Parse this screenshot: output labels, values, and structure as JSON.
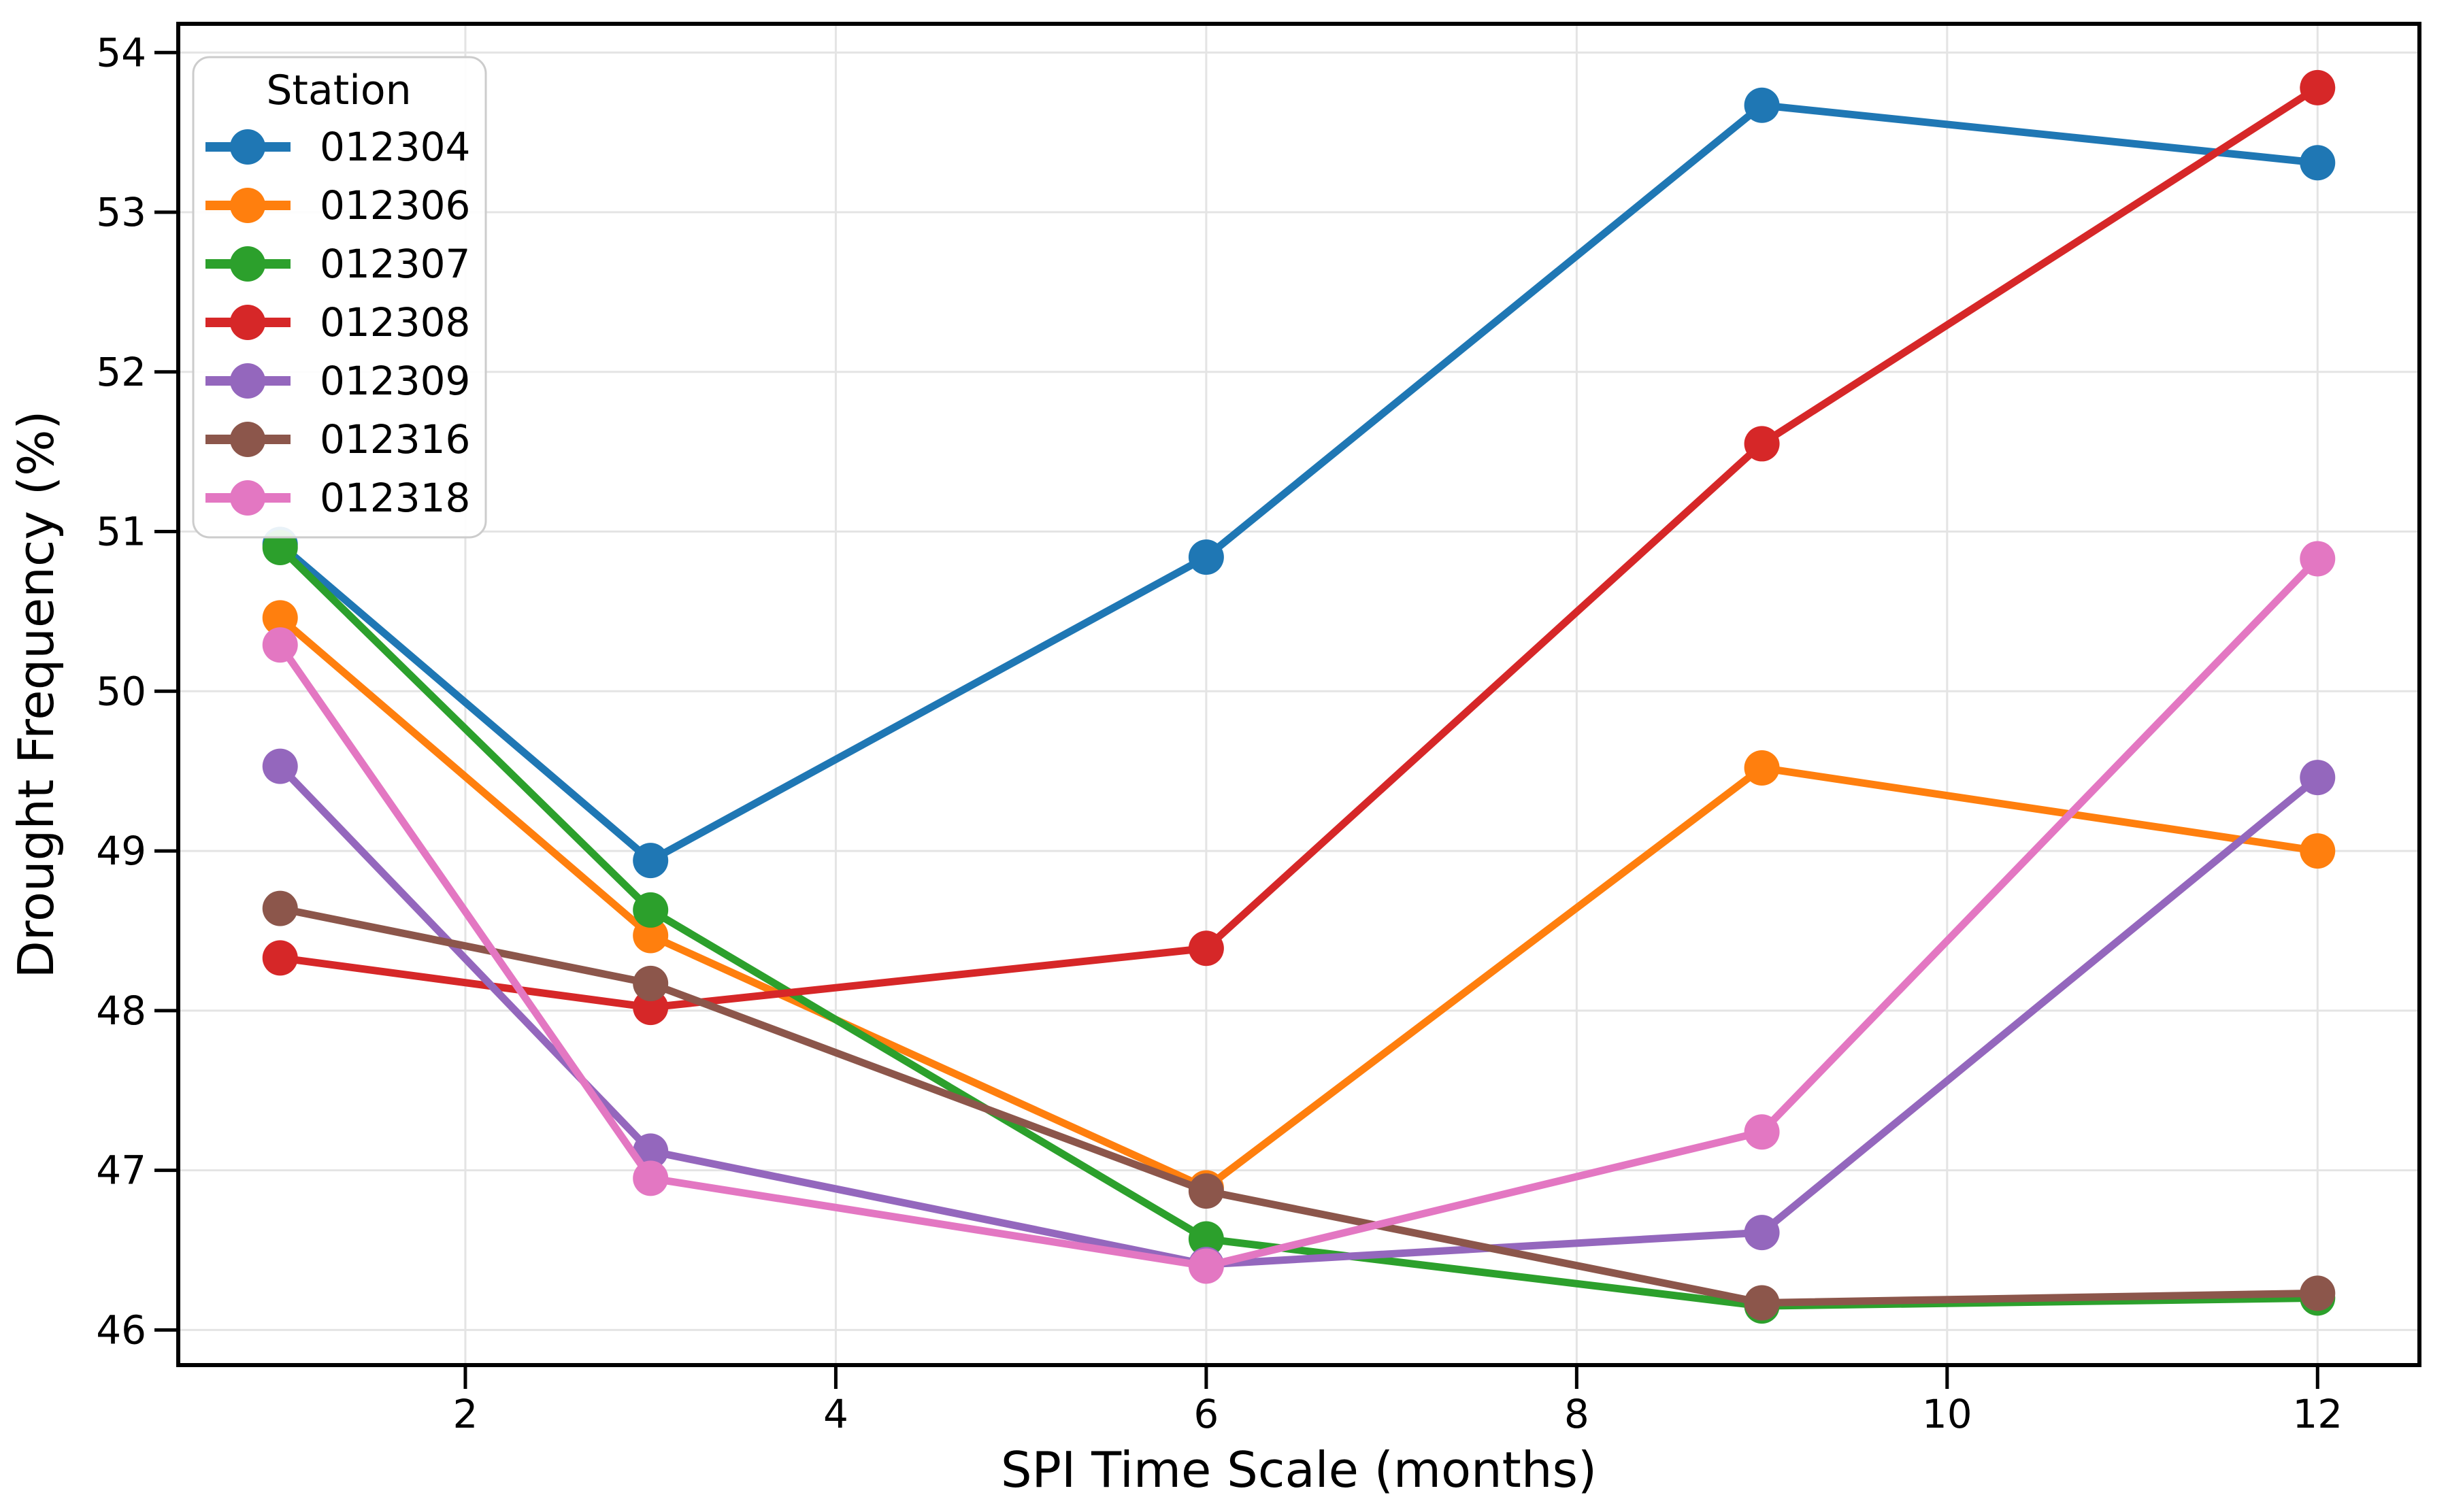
{
  "chart_data": {
    "type": "line",
    "title": "",
    "xlabel": "SPI Time Scale (months)",
    "ylabel": "Drought Frequency (%)",
    "x": [
      1,
      3,
      6,
      9,
      12
    ],
    "xlim": [
      0.45,
      12.55
    ],
    "ylim": [
      45.78,
      54.18
    ],
    "xticks": [
      2,
      4,
      6,
      8,
      10,
      12
    ],
    "yticks": [
      46,
      47,
      48,
      49,
      50,
      51,
      52,
      53,
      54
    ],
    "grid": true,
    "legend": {
      "title": "Station",
      "position": "upper-left"
    },
    "series": [
      {
        "name": "012304",
        "color": "#1f77b4",
        "values": [
          50.92,
          48.94,
          50.84,
          53.67,
          53.31
        ]
      },
      {
        "name": "012306",
        "color": "#ff7f0e",
        "values": [
          50.46,
          48.47,
          46.89,
          49.52,
          49.0
        ]
      },
      {
        "name": "012307",
        "color": "#2ca02c",
        "values": [
          50.9,
          48.63,
          46.57,
          46.15,
          46.2
        ]
      },
      {
        "name": "012308",
        "color": "#d62728",
        "values": [
          48.33,
          48.02,
          48.39,
          51.55,
          53.78
        ]
      },
      {
        "name": "012309",
        "color": "#9467bd",
        "values": [
          49.53,
          47.12,
          46.41,
          46.61,
          49.46
        ]
      },
      {
        "name": "012316",
        "color": "#8c564b",
        "values": [
          48.64,
          48.17,
          46.87,
          46.17,
          46.23
        ]
      },
      {
        "name": "012318",
        "color": "#e377c2",
        "values": [
          50.29,
          46.95,
          46.4,
          47.24,
          50.83
        ]
      }
    ]
  }
}
